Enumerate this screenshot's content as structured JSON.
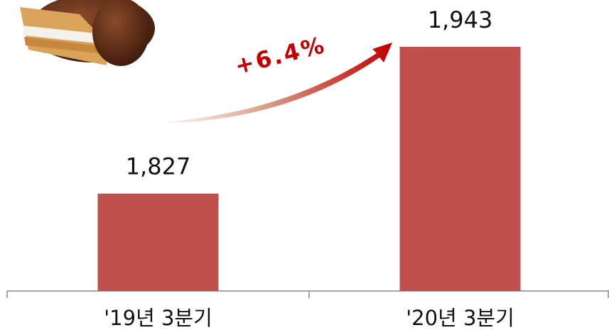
{
  "chart_data": {
    "type": "bar",
    "categories": [
      "'19년 3분기",
      "'20년 3분기"
    ],
    "values": [
      1827,
      1943
    ],
    "value_labels": [
      "1,827",
      "1,943"
    ],
    "color": "#c0504d",
    "ylim": [
      1750,
      1980
    ],
    "annotation": "+6.4%"
  }
}
